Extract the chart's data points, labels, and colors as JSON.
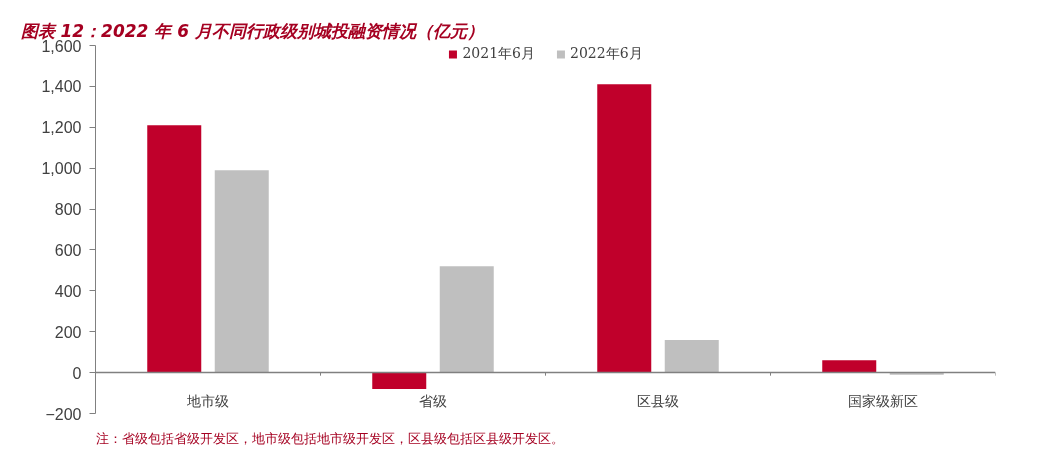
{
  "chart_data": {
    "type": "bar",
    "title": "图表 12：2022 年 6 月不同行政级别城投融资情况（亿元）",
    "categories": [
      "地市级",
      "省级",
      "区县级",
      "国家级新区"
    ],
    "series": [
      {
        "name": "2021年6月",
        "color": "#c0002b",
        "values": [
          1210,
          -80,
          1410,
          60
        ]
      },
      {
        "name": "2022年6月",
        "color": "#bfbfbf",
        "values": [
          990,
          520,
          160,
          -10
        ]
      }
    ],
    "ylim": [
      -200,
      1600
    ],
    "yticks": [
      -200,
      0,
      200,
      400,
      600,
      800,
      {
        "value": 1000,
        "label": "1,000"
      },
      {
        "value": 1200,
        "label": "1,200"
      },
      {
        "value": 1400,
        "label": "1,400"
      },
      {
        "value": 1600,
        "label": "1,600"
      }
    ],
    "grid": false,
    "legend": "top",
    "annotations": [
      "注：省级包括省级开发区，地市级包括地市级开发区，区县级包括区县级开发区。"
    ]
  }
}
